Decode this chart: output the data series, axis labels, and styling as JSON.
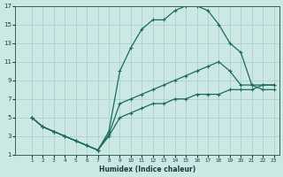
{
  "xlabel": "Humidex (Indice chaleur)",
  "xlim": [
    -0.5,
    23.5
  ],
  "ylim": [
    1,
    17
  ],
  "xticks": [
    1,
    2,
    3,
    4,
    5,
    6,
    7,
    8,
    9,
    10,
    11,
    12,
    13,
    14,
    15,
    16,
    17,
    18,
    19,
    20,
    21,
    22,
    23
  ],
  "yticks": [
    1,
    3,
    5,
    7,
    9,
    11,
    13,
    15,
    17
  ],
  "background_color": "#cce8e4",
  "grid_color": "#aacccc",
  "line_color": "#1a6b5a",
  "line1_x": [
    1,
    2,
    3,
    4,
    5,
    6,
    7,
    8,
    9,
    10,
    11,
    12,
    13,
    14,
    15,
    16,
    17,
    18,
    19,
    20,
    21,
    22,
    23
  ],
  "line1_y": [
    5,
    4,
    3.5,
    3,
    2.5,
    2,
    1.5,
    3.5,
    10,
    12.5,
    14.5,
    15.5,
    15.5,
    16.5,
    17,
    17,
    16.5,
    15,
    13,
    12,
    8.5,
    8,
    8
  ],
  "line2_x": [
    1,
    2,
    3,
    4,
    5,
    6,
    7,
    8,
    9,
    10,
    11,
    12,
    13,
    14,
    15,
    16,
    17,
    18,
    19,
    20,
    21,
    22,
    23
  ],
  "line2_y": [
    5,
    4,
    3.5,
    3,
    2.5,
    2,
    1.5,
    3.2,
    6.5,
    7,
    7.5,
    8,
    8.5,
    9,
    9.5,
    10,
    10.5,
    11,
    10,
    8.5,
    8.5,
    8.5,
    8.5
  ],
  "line3_x": [
    1,
    2,
    3,
    4,
    5,
    6,
    7,
    8,
    9,
    10,
    11,
    12,
    13,
    14,
    15,
    16,
    17,
    18,
    19,
    20,
    21,
    22,
    23
  ],
  "line3_y": [
    5,
    4,
    3.5,
    3,
    2.5,
    2,
    1.5,
    3.0,
    5,
    5.5,
    6,
    6.5,
    6.5,
    7,
    7,
    7.5,
    7.5,
    7.5,
    8,
    8,
    8,
    8.5,
    8.5
  ]
}
